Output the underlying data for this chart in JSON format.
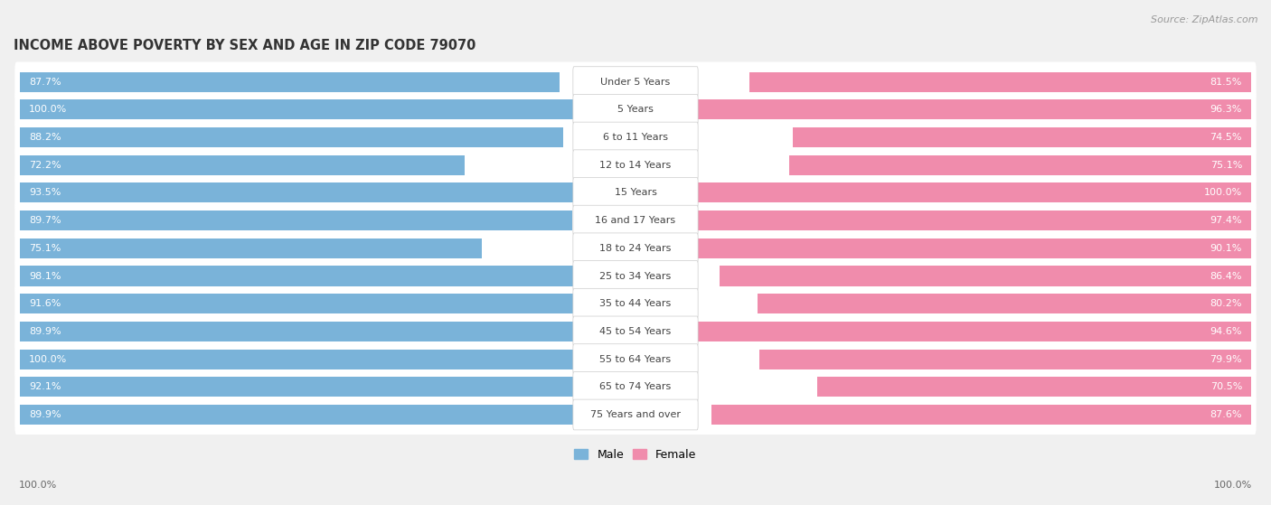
{
  "title": "INCOME ABOVE POVERTY BY SEX AND AGE IN ZIP CODE 79070",
  "source": "Source: ZipAtlas.com",
  "categories": [
    "Under 5 Years",
    "5 Years",
    "6 to 11 Years",
    "12 to 14 Years",
    "15 Years",
    "16 and 17 Years",
    "18 to 24 Years",
    "25 to 34 Years",
    "35 to 44 Years",
    "45 to 54 Years",
    "55 to 64 Years",
    "65 to 74 Years",
    "75 Years and over"
  ],
  "male_values": [
    87.7,
    100.0,
    88.2,
    72.2,
    93.5,
    89.7,
    75.1,
    98.1,
    91.6,
    89.9,
    100.0,
    92.1,
    89.9
  ],
  "female_values": [
    81.5,
    96.3,
    74.5,
    75.1,
    100.0,
    97.4,
    90.1,
    86.4,
    80.2,
    94.6,
    79.9,
    70.5,
    87.6
  ],
  "male_color": "#7ab3d9",
  "female_color": "#f08cac",
  "male_label": "Male",
  "female_label": "Female",
  "background_color": "#f0f0f0",
  "row_bg_color": "#ffffff",
  "title_fontsize": 10.5,
  "source_fontsize": 8,
  "label_fontsize": 8,
  "value_fontsize": 8,
  "max_val": 100.0,
  "x_axis_label": "100.0%"
}
